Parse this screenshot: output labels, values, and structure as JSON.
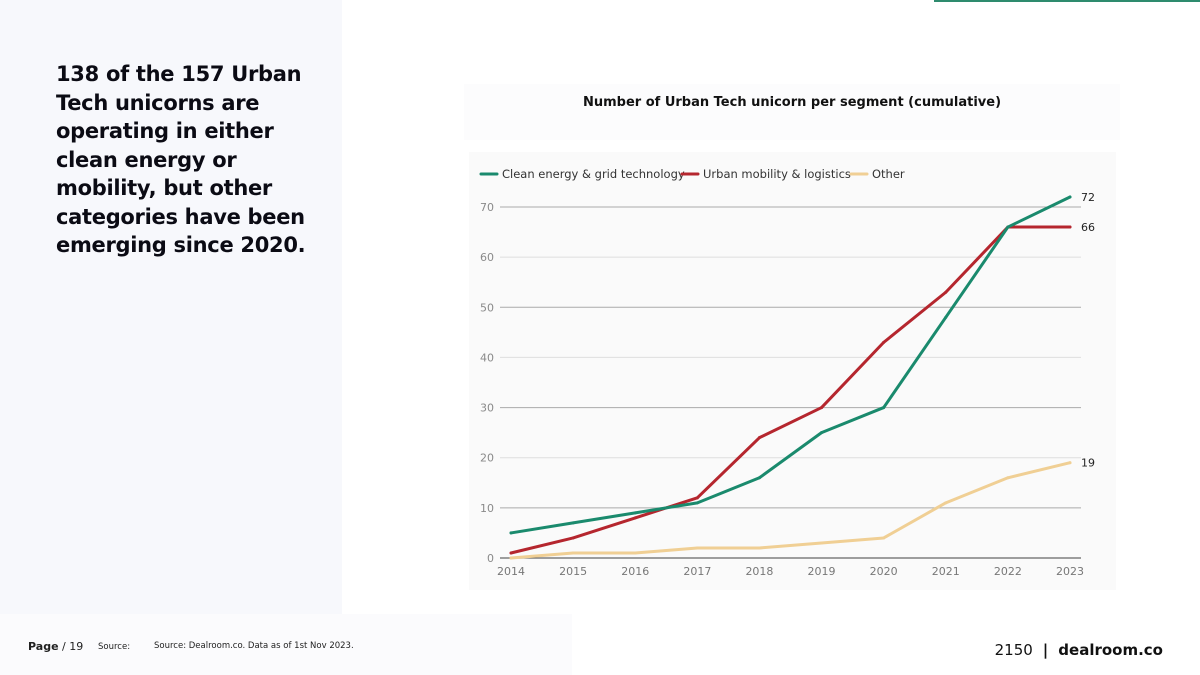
{
  "headline": "138 of the 157 Urban Tech unicorns are operating in either clean energy or mobility, but other categories have been emerging since 2020.",
  "chart_data": {
    "type": "line",
    "title": "Number of Urban Tech unicorn per segment (cumulative)",
    "x": [
      "2014",
      "2015",
      "2016",
      "2017",
      "2018",
      "2019",
      "2020",
      "2021",
      "2022",
      "2023"
    ],
    "yticks": [
      "0",
      "10",
      "20",
      "30",
      "40",
      "50",
      "60",
      "70"
    ],
    "ylim": [
      0,
      72
    ],
    "grid": true,
    "legend_position": "top-left",
    "series": [
      {
        "name": "Clean energy & grid technology",
        "color": "#1a8a6d",
        "values": [
          5,
          7,
          9,
          11,
          16,
          25,
          30,
          48,
          66,
          72
        ],
        "end_label": "72"
      },
      {
        "name": "Urban mobility & logistics",
        "color": "#b5262e",
        "values": [
          1,
          4,
          8,
          12,
          24,
          30,
          43,
          53,
          66,
          66
        ],
        "end_label": "66"
      },
      {
        "name": "Other",
        "color": "#f0cf94",
        "values": [
          0,
          1,
          1,
          2,
          2,
          3,
          4,
          11,
          16,
          19
        ],
        "end_label": "19"
      }
    ]
  },
  "footer": {
    "page_word": "Page",
    "page_rest": " / 19",
    "source_label": "Source:",
    "source_text": "Source: Dealroom.co. Data as of 1st Nov 2023.",
    "brand_left": "2150",
    "brand_sep": "|",
    "brand_right": "dealroom.co"
  }
}
